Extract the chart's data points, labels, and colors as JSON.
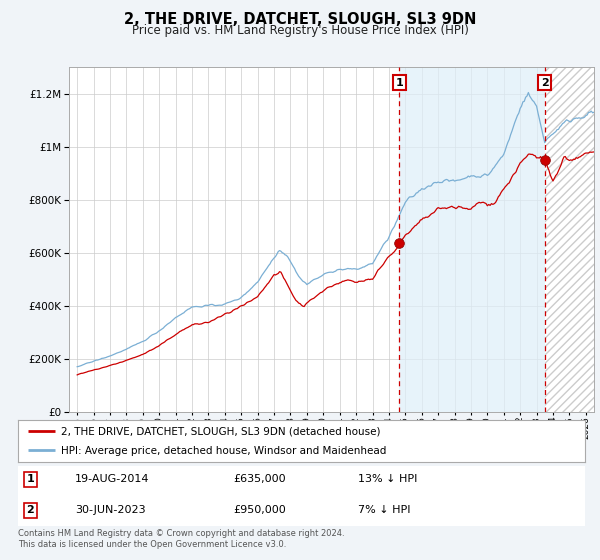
{
  "title": "2, THE DRIVE, DATCHET, SLOUGH, SL3 9DN",
  "subtitle": "Price paid vs. HM Land Registry's House Price Index (HPI)",
  "ytick_values": [
    0,
    200000,
    400000,
    600000,
    800000,
    1000000,
    1200000
  ],
  "ylim": [
    0,
    1300000
  ],
  "xlim_start": 1994.5,
  "xlim_end": 2026.5,
  "sale1_x": 2014.63,
  "sale1_y": 635000,
  "sale2_x": 2023.5,
  "sale2_y": 950000,
  "sale1_label": "1",
  "sale2_label": "2",
  "sale1_date": "19-AUG-2014",
  "sale1_price": "£635,000",
  "sale1_hpi": "13% ↓ HPI",
  "sale2_date": "30-JUN-2023",
  "sale2_price": "£950,000",
  "sale2_hpi": "7% ↓ HPI",
  "line_color_property": "#cc0000",
  "line_color_hpi": "#7bafd4",
  "vline_color": "#cc0000",
  "box_color": "#cc0000",
  "shade_color": "#ddeeff",
  "hatch_color": "#cccccc",
  "legend_label_property": "2, THE DRIVE, DATCHET, SLOUGH, SL3 9DN (detached house)",
  "legend_label_hpi": "HPI: Average price, detached house, Windsor and Maidenhead",
  "footer_text": "Contains HM Land Registry data © Crown copyright and database right 2024.\nThis data is licensed under the Open Government Licence v3.0.",
  "background_color": "#f0f4f8",
  "plot_bg_color": "#ffffff",
  "grid_color": "#cccccc"
}
